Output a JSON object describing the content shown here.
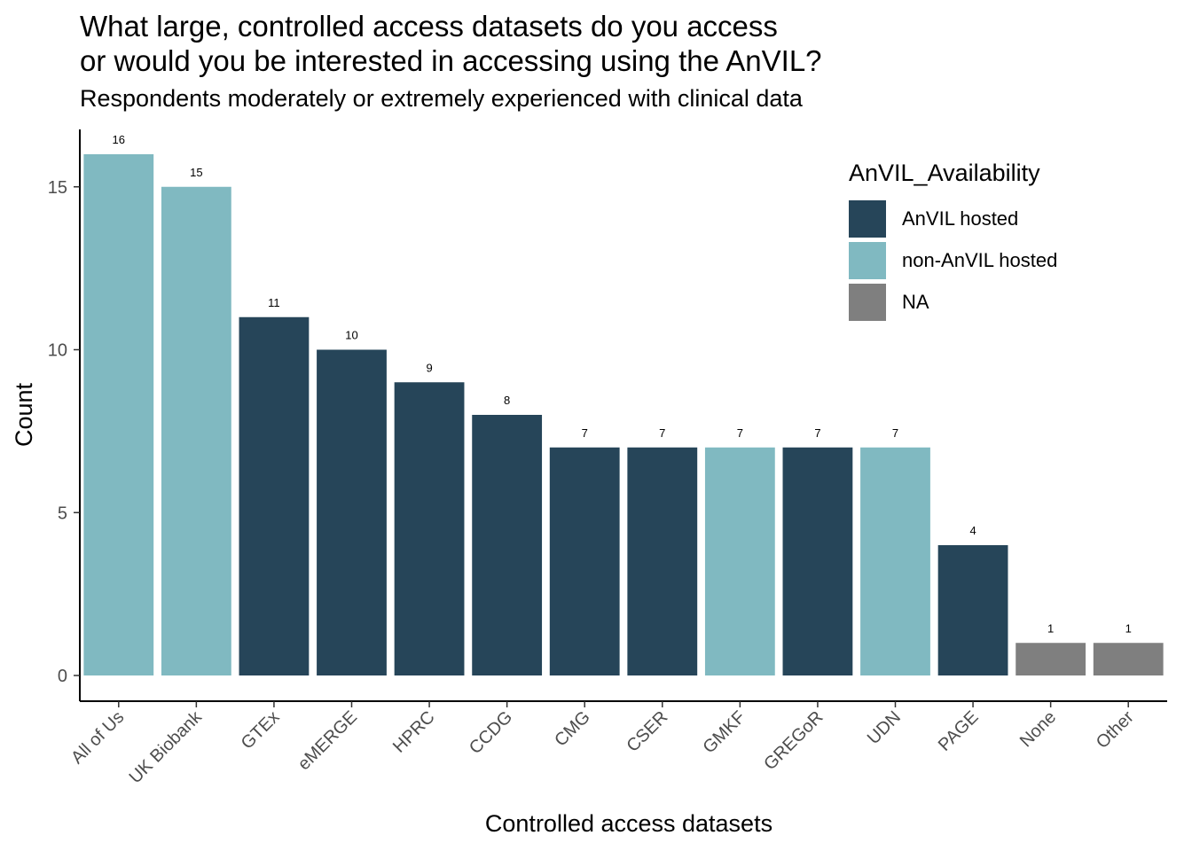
{
  "title_lines": [
    "What large, controlled access datasets do you access",
    "or would you be interested in accessing using the AnVIL?"
  ],
  "subtitle": "Respondents moderately or extremely experienced with clinical data",
  "chart_data": {
    "type": "bar",
    "title": "What large, controlled access datasets do you access or would you be interested in accessing using the AnVIL?",
    "subtitle": "Respondents moderately or extremely experienced with clinical data",
    "xlabel": "Controlled access datasets",
    "ylabel": "Count",
    "ylim": [
      0,
      16.8
    ],
    "yticks": [
      0,
      5,
      10,
      15
    ],
    "grid": false,
    "legend_position": "top-right",
    "legend_title": "AnVIL_Availability",
    "legend": [
      {
        "label": "AnVIL hosted",
        "color": "#264559"
      },
      {
        "label": "non-AnVIL hosted",
        "color": "#80B9C1"
      },
      {
        "label": "NA",
        "color": "#7F7F7F"
      }
    ],
    "categories": [
      "All of Us",
      "UK Biobank",
      "GTEx",
      "eMERGE",
      "HPRC",
      "CCDG",
      "CMG",
      "CSER",
      "GMKF",
      "GREGoR",
      "UDN",
      "PAGE",
      "None",
      "Other"
    ],
    "values": [
      16,
      15,
      11,
      10,
      9,
      8,
      7,
      7,
      7,
      7,
      7,
      4,
      1,
      1
    ],
    "availability": [
      "non-AnVIL hosted",
      "non-AnVIL hosted",
      "AnVIL hosted",
      "AnVIL hosted",
      "AnVIL hosted",
      "AnVIL hosted",
      "AnVIL hosted",
      "AnVIL hosted",
      "non-AnVIL hosted",
      "AnVIL hosted",
      "non-AnVIL hosted",
      "AnVIL hosted",
      "NA",
      "NA"
    ]
  }
}
